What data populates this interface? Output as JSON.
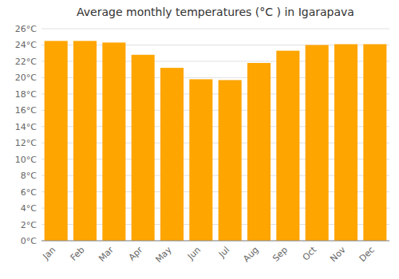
{
  "chart_data": {
    "type": "bar",
    "title": "Average monthly temperatures (°C ) in Igarapava",
    "categories": [
      "Jan",
      "Feb",
      "Mar",
      "Apr",
      "May",
      "Jun",
      "Jul",
      "Aug",
      "Sep",
      "Oct",
      "Nov",
      "Dec"
    ],
    "values": [
      24.5,
      24.5,
      24.3,
      22.8,
      21.2,
      19.8,
      19.7,
      21.8,
      23.3,
      24.0,
      24.1,
      24.1
    ],
    "color": "#FFA500",
    "ylim": [
      0,
      26
    ],
    "yticks": [
      {
        "value": 0,
        "label": "0°C"
      },
      {
        "value": 2,
        "label": "2°C"
      },
      {
        "value": 4,
        "label": "4°C"
      },
      {
        "value": 6,
        "label": "6°C"
      },
      {
        "value": 8,
        "label": "8°C"
      },
      {
        "value": 10,
        "label": "10°C"
      },
      {
        "value": 12,
        "label": "12°C"
      },
      {
        "value": 14,
        "label": "14°C"
      },
      {
        "value": 16,
        "label": "16°C"
      },
      {
        "value": 18,
        "label": "18°C"
      },
      {
        "value": 20,
        "label": "20°C"
      },
      {
        "value": 22,
        "label": "22°C"
      },
      {
        "value": 24,
        "label": "24°C"
      },
      {
        "value": 26,
        "label": "26°C"
      }
    ],
    "grid": true
  }
}
